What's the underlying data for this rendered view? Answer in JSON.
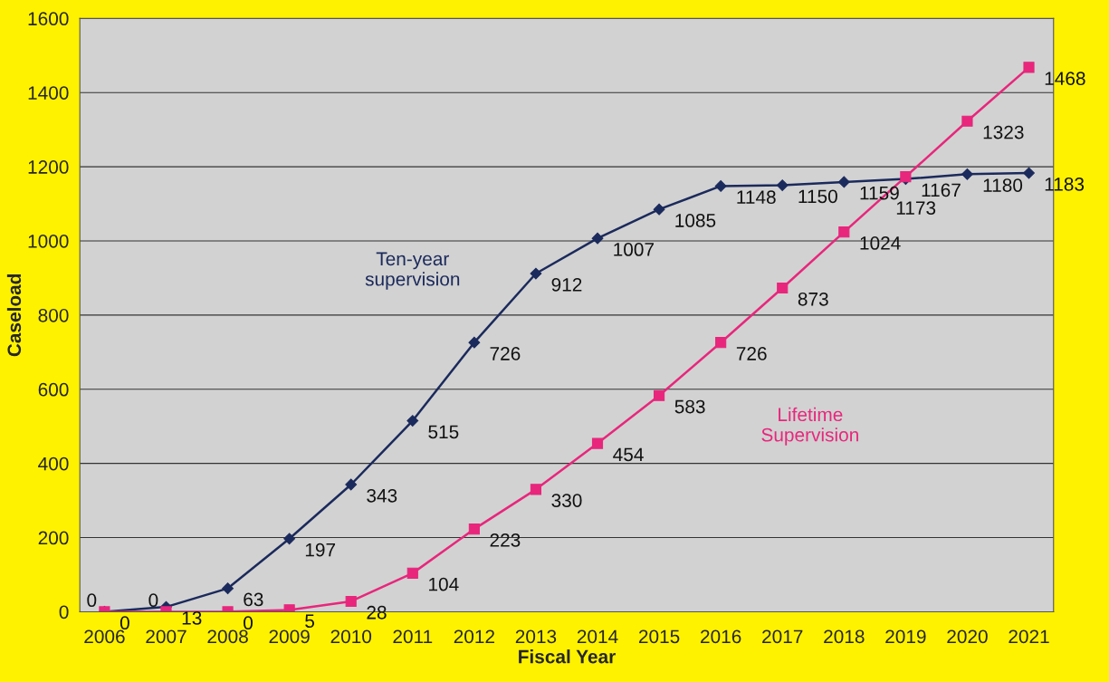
{
  "chart_data": {
    "type": "line",
    "xlabel": "Fiscal Year",
    "ylabel": "Caseload",
    "categories": [
      "2006",
      "2007",
      "2008",
      "2009",
      "2010",
      "2011",
      "2012",
      "2013",
      "2014",
      "2015",
      "2016",
      "2017",
      "2018",
      "2019",
      "2020",
      "2021"
    ],
    "series": [
      {
        "name": "Ten-year supervision",
        "color": "#1b2a5c",
        "marker": "diamond",
        "values": [
          0,
          13,
          63,
          197,
          343,
          515,
          726,
          912,
          1007,
          1085,
          1148,
          1150,
          1159,
          1167,
          1180,
          1183
        ]
      },
      {
        "name": "Lifetime Supervision",
        "color": "#e8267c",
        "marker": "square",
        "values": [
          0,
          0,
          0,
          5,
          28,
          104,
          223,
          330,
          454,
          583,
          726,
          873,
          1024,
          1173,
          1323,
          1468
        ]
      }
    ],
    "ylim": [
      0,
      1600
    ],
    "yticks": [
      0,
      200,
      400,
      600,
      800,
      1000,
      1200,
      1400,
      1600
    ],
    "grid": "y",
    "legend": false,
    "data_labels": true,
    "line_style": "solid"
  }
}
